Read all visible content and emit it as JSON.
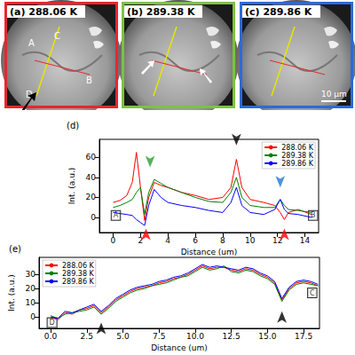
{
  "panels": [
    {
      "label": "(a) 288.06 K",
      "color": "#e8262a",
      "letters": [
        "A",
        "B",
        "C",
        "D"
      ]
    },
    {
      "label": "(b) 289.38 K",
      "color": "#7cc242"
    },
    {
      "label": "(c) 289.86 K",
      "color": "#2a6ad8",
      "scale_bar": "10 μm"
    }
  ],
  "chart_data": [
    {
      "type": "line",
      "title": "(d)",
      "x_label": "Distance (um)",
      "y_label": "Int. (a.u.)",
      "x": [
        0,
        0.5,
        1,
        1.4,
        1.7,
        2.0,
        2.3,
        2.6,
        3.0,
        3.5,
        4,
        5,
        6,
        7,
        8,
        8.6,
        9,
        9.4,
        10,
        11,
        11.8,
        12.2,
        12.5,
        12.8,
        13.5,
        14.5
      ],
      "series": [
        {
          "name": "288.06 K",
          "color": "red",
          "values": [
            15,
            17,
            22,
            35,
            65,
            30,
            -3,
            20,
            35,
            32,
            30,
            25,
            22,
            18,
            20,
            30,
            58,
            30,
            18,
            15,
            12,
            5,
            -2,
            5,
            8,
            3
          ]
        },
        {
          "name": "289.38 K",
          "color": "green",
          "values": [
            10,
            12,
            15,
            18,
            25,
            30,
            3,
            25,
            38,
            34,
            30,
            25,
            20,
            16,
            15,
            25,
            40,
            20,
            12,
            10,
            10,
            18,
            12,
            8,
            7,
            5
          ]
        },
        {
          "name": "289.86 K",
          "color": "blue",
          "values": [
            5,
            4,
            3,
            2,
            -2,
            -5,
            -8,
            12,
            28,
            20,
            15,
            12,
            10,
            7,
            5,
            15,
            30,
            12,
            5,
            3,
            8,
            18,
            8,
            4,
            3,
            0
          ]
        }
      ],
      "xlim": [
        -1,
        15
      ],
      "xticks": [
        0,
        2,
        4,
        6,
        8,
        10,
        12,
        14
      ],
      "ylim": [
        -15,
        78
      ],
      "yticks": [
        0,
        20,
        40,
        60
      ],
      "grid": false,
      "legend": "upper right",
      "annotations": [
        {
          "text": "A",
          "x": 0.2,
          "y": 2
        },
        {
          "text": "B",
          "x": 14.6,
          "y": 2
        }
      ],
      "arrows": [
        {
          "x": 2.7,
          "y": 50,
          "color": "#2ca02c",
          "direction": "down"
        },
        {
          "x": 9,
          "y": 72,
          "color": "#000000",
          "direction": "down"
        },
        {
          "x": 12.2,
          "y": 30,
          "color": "#1f77d4",
          "direction": "down"
        },
        {
          "x": 2.4,
          "y": -11,
          "color": "red",
          "direction": "up"
        },
        {
          "x": 12.5,
          "y": -11,
          "color": "red",
          "direction": "up"
        }
      ]
    },
    {
      "type": "line",
      "title": "(e)",
      "x_label": "Distance (um)",
      "y_label": "Int. (a.u.)",
      "x": [
        0,
        0.5,
        1,
        1.5,
        2,
        2.5,
        3,
        3.5,
        4,
        4.5,
        5,
        5.5,
        6,
        6.5,
        7,
        7.5,
        8,
        8.5,
        9,
        9.5,
        10,
        10.5,
        11,
        11.5,
        12,
        12.5,
        13,
        13.5,
        14,
        14.5,
        15,
        15.5,
        16,
        16.5,
        17,
        17.5,
        18,
        18.5
      ],
      "series": [
        {
          "name": "288.06 K",
          "color": "red",
          "values": [
            0,
            -2,
            3,
            2,
            5,
            6,
            8,
            3,
            7,
            12,
            15,
            18,
            20,
            21,
            22,
            24,
            25,
            27,
            28,
            30,
            33,
            36,
            34,
            35,
            35,
            33,
            32,
            34,
            33,
            30,
            28,
            24,
            12,
            20,
            24,
            25,
            24,
            22
          ]
        },
        {
          "name": "289.38 K",
          "color": "green",
          "values": [
            1,
            -1,
            2,
            3,
            4,
            5,
            7,
            2,
            6,
            11,
            14,
            17,
            19,
            20,
            22,
            23,
            24,
            26,
            28,
            29,
            32,
            35,
            33,
            34,
            36,
            32,
            31,
            33,
            32,
            29,
            27,
            23,
            11,
            19,
            23,
            24,
            23,
            22
          ]
        },
        {
          "name": "289.86 K",
          "color": "blue",
          "values": [
            0,
            -1,
            4,
            3,
            5,
            7,
            9,
            4,
            8,
            13,
            16,
            19,
            21,
            22,
            23,
            25,
            26,
            28,
            29,
            31,
            34,
            37,
            35,
            36,
            35,
            34,
            33,
            35,
            34,
            31,
            29,
            25,
            13,
            21,
            25,
            26,
            25,
            23
          ]
        }
      ],
      "xlim": [
        -0.8,
        18.6
      ],
      "xticks": [
        {
          "value": 0,
          "label": "0.0"
        },
        2.5,
        {
          "value": 5,
          "label": "5.0"
        },
        7.5,
        {
          "value": 10,
          "label": "10.0"
        },
        12.5,
        {
          "value": 15,
          "label": "15.0"
        },
        17.5
      ],
      "ylim": [
        -8,
        42
      ],
      "yticks": [
        0,
        10,
        20,
        30
      ],
      "grid": false,
      "legend": "upper left",
      "annotations": [
        {
          "text": "D",
          "x": 0.1,
          "y": -4
        },
        {
          "text": "C",
          "x": 18.1,
          "y": 17
        }
      ],
      "arrows": [
        {
          "x": 3.5,
          "y": -4,
          "color": "#000000",
          "direction": "up"
        },
        {
          "x": 16,
          "y": 4,
          "color": "#000000",
          "direction": "up"
        }
      ]
    }
  ]
}
